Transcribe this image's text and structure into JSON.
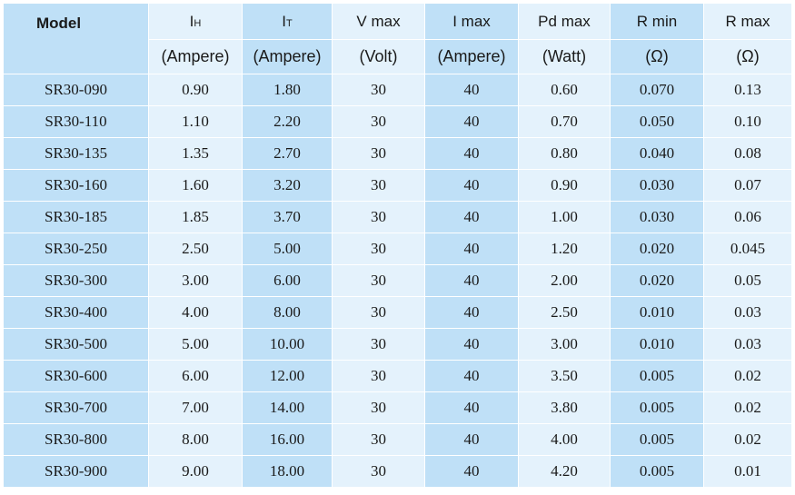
{
  "table": {
    "headers": [
      {
        "line1": "Model",
        "line2": ""
      },
      {
        "line1_main": "I",
        "line1_sub": "H",
        "line2": "(Ampere)"
      },
      {
        "line1_main": "I",
        "line1_sub": "T",
        "line2": "(Ampere)"
      },
      {
        "line1": "V max",
        "line2": "(Volt)"
      },
      {
        "line1": "I max",
        "line2": "(Ampere)"
      },
      {
        "line1": "Pd max",
        "line2": "(Watt)"
      },
      {
        "line1": "R min",
        "line2": "(Ω)"
      },
      {
        "line1": "R max",
        "line2": "(Ω)"
      }
    ],
    "rows": [
      [
        "SR30-090",
        "0.90",
        "1.80",
        "30",
        "40",
        "0.60",
        "0.070",
        "0.13"
      ],
      [
        "SR30-110",
        "1.10",
        "2.20",
        "30",
        "40",
        "0.70",
        "0.050",
        "0.10"
      ],
      [
        "SR30-135",
        "1.35",
        "2.70",
        "30",
        "40",
        "0.80",
        "0.040",
        "0.08"
      ],
      [
        "SR30-160",
        "1.60",
        "3.20",
        "30",
        "40",
        "0.90",
        "0.030",
        "0.07"
      ],
      [
        "SR30-185",
        "1.85",
        "3.70",
        "30",
        "40",
        "1.00",
        "0.030",
        "0.06"
      ],
      [
        "SR30-250",
        "2.50",
        "5.00",
        "30",
        "40",
        "1.20",
        "0.020",
        "0.045"
      ],
      [
        "SR30-300",
        "3.00",
        "6.00",
        "30",
        "40",
        "2.00",
        "0.020",
        "0.05"
      ],
      [
        "SR30-400",
        "4.00",
        "8.00",
        "30",
        "40",
        "2.50",
        "0.010",
        "0.03"
      ],
      [
        "SR30-500",
        "5.00",
        "10.00",
        "30",
        "40",
        "3.00",
        "0.010",
        "0.03"
      ],
      [
        "SR30-600",
        "6.00",
        "12.00",
        "30",
        "40",
        "3.50",
        "0.005",
        "0.02"
      ],
      [
        "SR30-700",
        "7.00",
        "14.00",
        "30",
        "40",
        "3.80",
        "0.005",
        "0.02"
      ],
      [
        "SR30-800",
        "8.00",
        "16.00",
        "30",
        "40",
        "4.00",
        "0.005",
        "0.02"
      ],
      [
        "SR30-900",
        "9.00",
        "18.00",
        "30",
        "40",
        "4.20",
        "0.005",
        "0.01"
      ]
    ]
  },
  "colors": {
    "column_dark": "#bfe0f7",
    "column_light": "#e4f2fc",
    "grid_line": "#ffffff",
    "text": "#1a1a1a"
  }
}
